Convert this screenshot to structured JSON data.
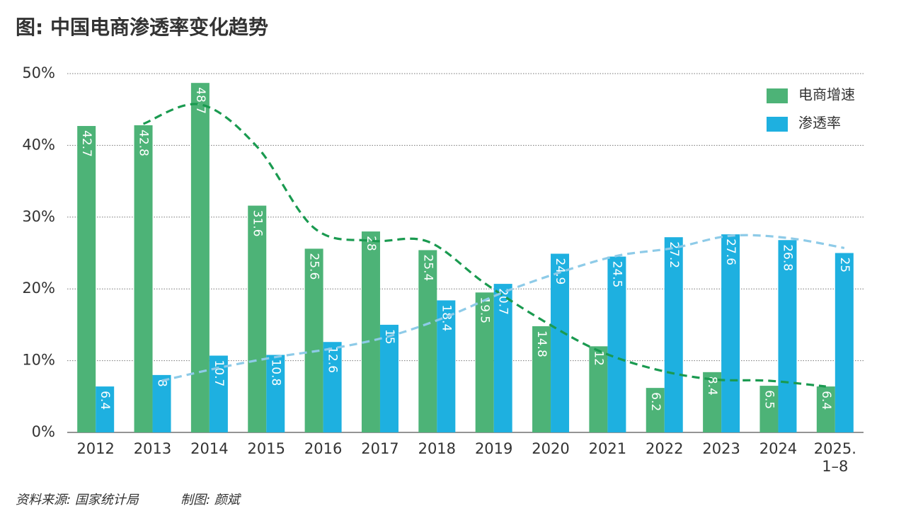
{
  "chart_data": {
    "type": "bar",
    "title": "图: 中国电商渗透率变化趋势",
    "source": "资料来源: 国家统计局",
    "author": "制图: 颜斌",
    "categories": [
      "2012",
      "2013",
      "2014",
      "2015",
      "2016",
      "2017",
      "2018",
      "2019",
      "2020",
      "2021",
      "2022",
      "2023",
      "2024",
      "2025.\n1–8"
    ],
    "series": [
      {
        "name": "电商增速",
        "color": "#4db377",
        "values": [
          42.7,
          42.8,
          48.7,
          31.6,
          25.6,
          28,
          25.4,
          19.5,
          14.8,
          12,
          6.2,
          8.4,
          6.5,
          6.4
        ]
      },
      {
        "name": "渗透率",
        "color": "#1eb0e0",
        "values": [
          6.4,
          8,
          10.7,
          10.8,
          12.6,
          15,
          18.4,
          20.7,
          24.9,
          24.5,
          27.2,
          27.6,
          26.8,
          25
        ]
      }
    ],
    "trend_lines": [
      {
        "color": "#1a9a50",
        "values": [
          null,
          43.0,
          45.7,
          39.8,
          28.5,
          26.7,
          26.6,
          20.8,
          15.7,
          11.4,
          8.8,
          7.4,
          7.2,
          6.4
        ]
      },
      {
        "color": "#8ecbe8",
        "values": [
          null,
          7.2,
          9.0,
          10.5,
          11.7,
          13.4,
          16.1,
          19.5,
          22.3,
          24.6,
          25.7,
          27.4,
          27.1,
          25.7
        ]
      }
    ],
    "ylim": [
      0,
      50
    ],
    "yticks": [
      {
        "value": 0,
        "label": "0%"
      },
      {
        "value": 10,
        "label": "10%"
      },
      {
        "value": 20,
        "label": "20%"
      },
      {
        "value": 30,
        "label": "30%"
      },
      {
        "value": 40,
        "label": "40%"
      },
      {
        "value": 50,
        "label": "50%"
      }
    ],
    "grid": true,
    "legend": "top-right"
  }
}
